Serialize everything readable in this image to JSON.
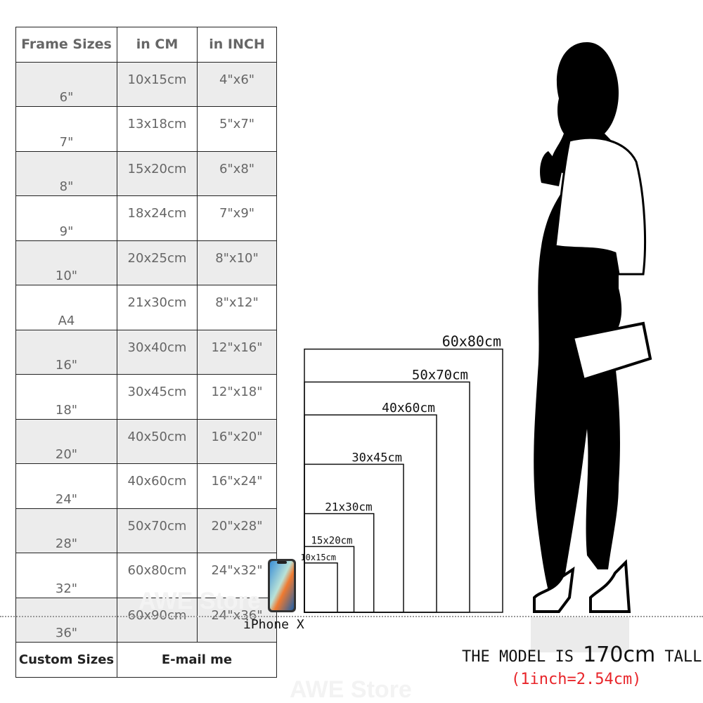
{
  "table": {
    "headers": [
      "Frame Sizes",
      "in CM",
      "in INCH"
    ],
    "rows": [
      [
        "6\"",
        "10x15cm",
        "4\"x6\""
      ],
      [
        "7\"",
        "13x18cm",
        "5\"x7\""
      ],
      [
        "8\"",
        "15x20cm",
        "6\"x8\""
      ],
      [
        "9\"",
        "18x24cm",
        "7\"x9\""
      ],
      [
        "10\"",
        "20x25cm",
        "8\"x10\""
      ],
      [
        "A4",
        "21x30cm",
        "8\"x12\""
      ],
      [
        "16\"",
        "30x40cm",
        "12\"x16\""
      ],
      [
        "18\"",
        "30x45cm",
        "12\"x18\""
      ],
      [
        "20\"",
        "40x50cm",
        "16\"x20\""
      ],
      [
        "24\"",
        "40x60cm",
        "16\"x24\""
      ],
      [
        "28\"",
        "50x70cm",
        "20\"x28\""
      ],
      [
        "32\"",
        "60x80cm",
        "24\"x32\""
      ],
      [
        "36\"",
        "60x90cm",
        "24\"x36\""
      ]
    ],
    "footer": [
      "Custom Sizes",
      "E-mail me"
    ]
  },
  "frames": [
    {
      "label": "10x15cm",
      "w_cm": 10,
      "h_cm": 15
    },
    {
      "label": "15x20cm",
      "w_cm": 15,
      "h_cm": 20
    },
    {
      "label": "21x30cm",
      "w_cm": 21,
      "h_cm": 30
    },
    {
      "label": "30x45cm",
      "w_cm": 30,
      "h_cm": 45
    },
    {
      "label": "40x60cm",
      "w_cm": 40,
      "h_cm": 60
    },
    {
      "label": "50x70cm",
      "w_cm": 50,
      "h_cm": 70
    },
    {
      "label": "60x80cm",
      "w_cm": 60,
      "h_cm": 80
    }
  ],
  "phone_label": "iPhone X",
  "model_text": {
    "prefix": "THE MODEL IS ",
    "height": "170cm",
    "suffix": " TALL"
  },
  "conversion": "(1inch=2.54cm)",
  "watermark": "AWE Store",
  "colors": {
    "conversion": "#e8252a",
    "shade": "#ececec"
  }
}
